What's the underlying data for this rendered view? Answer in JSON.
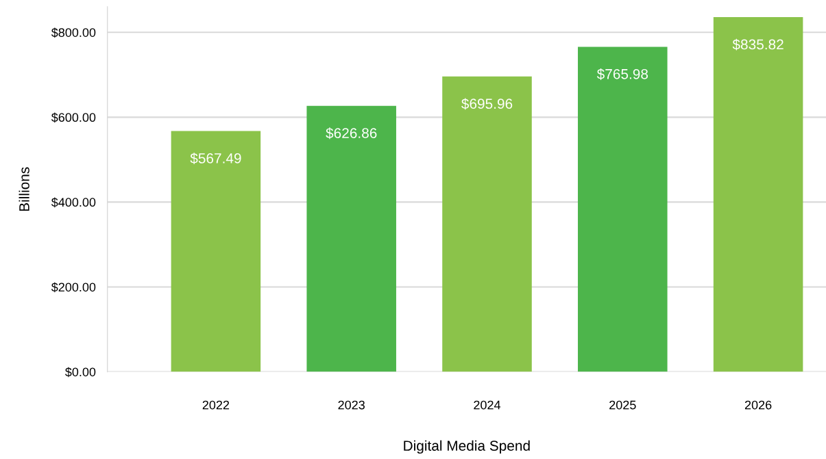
{
  "chart_data": {
    "type": "bar",
    "xlabel": "Digital Media Spend",
    "ylabel": "Billions",
    "categories": [
      "2022",
      "2023",
      "2024",
      "2025",
      "2026"
    ],
    "values": [
      567.49,
      626.86,
      695.96,
      765.98,
      835.82
    ],
    "colors": [
      "#8bc34a",
      "#4db54b",
      "#8bc34a",
      "#4db54b",
      "#8bc34a"
    ],
    "value_labels": [
      "$567.49",
      "$626.86",
      "$695.96",
      "$765.98",
      "$835.82"
    ],
    "ylim": [
      0,
      860
    ],
    "yticks": [
      {
        "value": 0,
        "label": "$0.00"
      },
      {
        "value": 200,
        "label": "$200.00"
      },
      {
        "value": 400,
        "label": "$400.00"
      },
      {
        "value": 600,
        "label": "$600.00"
      },
      {
        "value": 800,
        "label": "$800.00"
      }
    ],
    "grid": "y",
    "legend": false
  }
}
